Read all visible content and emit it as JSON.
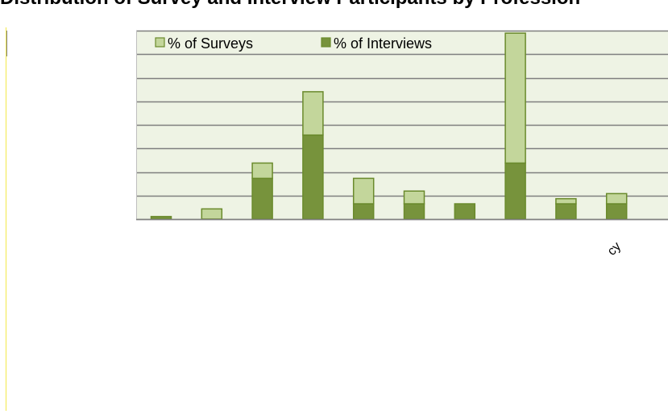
{
  "page": {
    "title": "Distribution of Survey and Interview Participants by Profession"
  },
  "chart_data": {
    "type": "bar",
    "stacked": true,
    "categories": [
      "",
      "",
      "",
      "",
      "",
      "",
      "",
      "",
      "",
      ""
    ],
    "series": [
      {
        "name": "% of Interviews",
        "color": "#77933c",
        "values": [
          0.5,
          0,
          8,
          16.5,
          3,
          3,
          3,
          11,
          3,
          3
        ]
      },
      {
        "name": "% of Surveys",
        "color": "#c3d69b",
        "values": [
          0,
          2,
          3,
          8.5,
          5,
          2.5,
          0,
          25.5,
          1,
          2
        ]
      }
    ],
    "ylim": [
      0,
      37
    ],
    "grid": true,
    "legend_position": "top-left",
    "tick_labels": [
      "cy"
    ],
    "plot_background": "#eef3e4",
    "gridline_color": "#7f7f7f"
  }
}
